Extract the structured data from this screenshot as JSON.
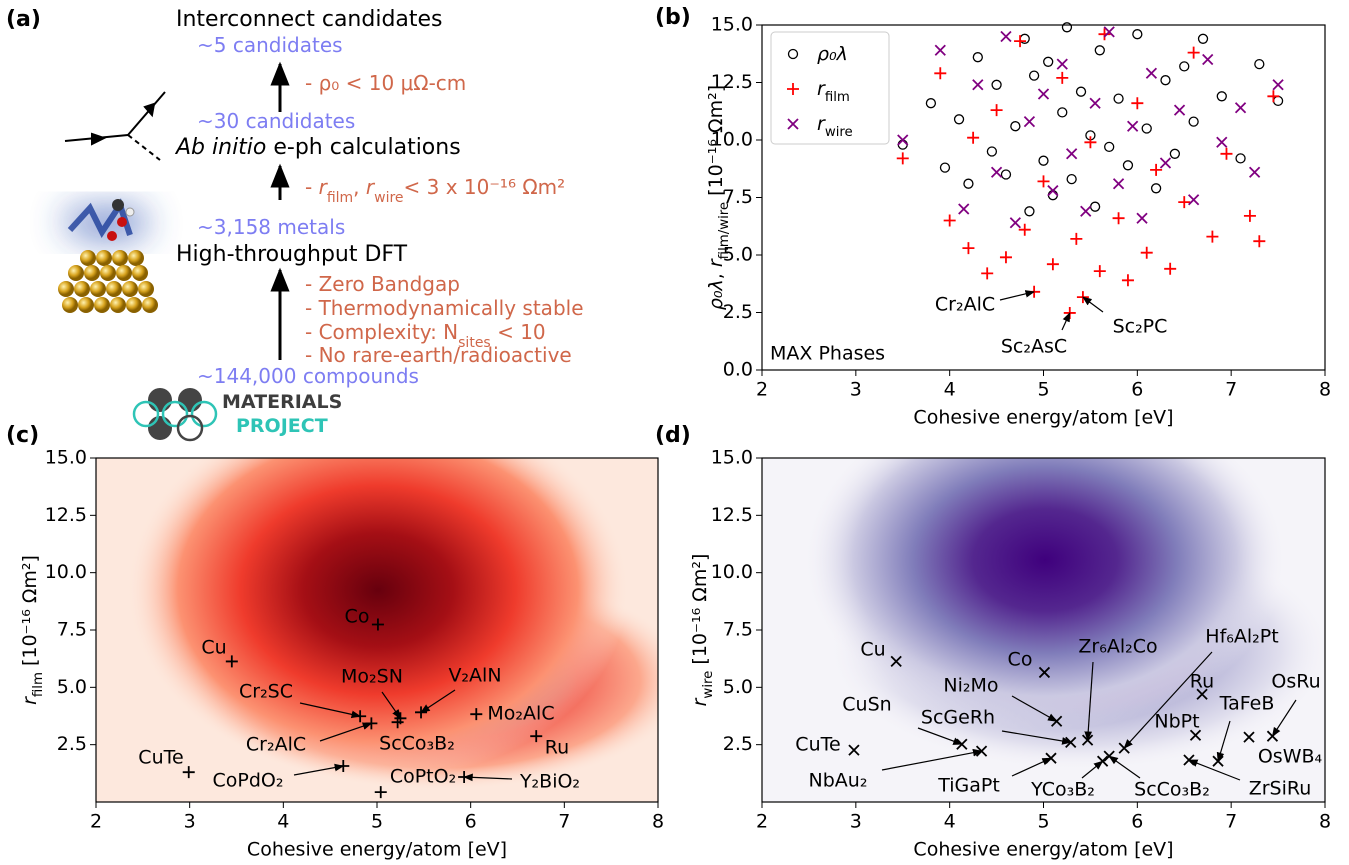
{
  "panel_a": {
    "label": "(a)",
    "top": {
      "title": "Interconnect candidates",
      "count": "~5 candidates"
    },
    "filter1": "- ρ₀ < 10 μΩ-cm",
    "stage2": {
      "count": "~30 candidates",
      "title": [
        "Ab initio",
        " e-ph calculations"
      ]
    },
    "filter2": [
      "- ",
      "r",
      "film",
      ", ",
      "r",
      "wire",
      "< 3 x 10⁻¹⁶ Ωm²"
    ],
    "stage3": {
      "count": "~3,158 metals",
      "title": "High-throughput DFT"
    },
    "filter3": [
      "- Zero Bandgap",
      "- Thermodynamically stable",
      [
        "- Complexity: N",
        "sites",
        " < 10"
      ],
      "- No rare-earth/radioactive"
    ],
    "source": {
      "count": "~144,000 compounds",
      "logo": [
        "MATERIALS",
        "PROJECT"
      ]
    }
  },
  "chart_data": [
    {
      "type": "scatter",
      "panel_label": "(b)",
      "xlabel": "Cohesive energy/atom [eV]",
      "ylabel": [
        "ρ₀λ",
        ", ",
        "r",
        "film/wire",
        " [10⁻¹⁶ Ωm²]"
      ],
      "xlim": [
        2,
        8
      ],
      "ylim": [
        0,
        15
      ],
      "xticks": [
        2,
        3,
        4,
        5,
        6,
        7,
        8
      ],
      "yticks": [
        {
          "value": 0,
          "label": "0.0"
        },
        2.5,
        {
          "value": 5,
          "label": "5.0"
        },
        7.5,
        {
          "value": 10,
          "label": "10.0"
        },
        12.5,
        {
          "value": 15,
          "label": "15.0"
        }
      ],
      "legend": "upper left",
      "corner_text": "MAX Phases",
      "series": [
        {
          "name": [
            "ρ₀λ"
          ],
          "marker": "o",
          "color": "#000000",
          "x": [
            3.5,
            3.8,
            3.95,
            4.1,
            4.2,
            4.3,
            4.45,
            4.5,
            4.6,
            4.7,
            4.8,
            4.85,
            4.9,
            5.0,
            5.05,
            5.1,
            5.2,
            5.25,
            5.3,
            5.4,
            5.5,
            5.55,
            5.6,
            5.7,
            5.8,
            5.9,
            6.0,
            6.1,
            6.2,
            6.3,
            6.4,
            6.5,
            6.6,
            6.7,
            6.9,
            7.1,
            7.3,
            7.5
          ],
          "values": [
            9.8,
            11.6,
            8.8,
            10.9,
            8.1,
            13.6,
            9.5,
            12.4,
            8.5,
            10.6,
            14.4,
            6.9,
            12.8,
            9.1,
            13.4,
            7.6,
            11.2,
            14.9,
            8.3,
            12.1,
            10.2,
            7.1,
            13.9,
            9.7,
            11.8,
            8.9,
            14.6,
            10.5,
            7.9,
            12.6,
            9.4,
            13.2,
            10.8,
            14.4,
            11.9,
            9.2,
            13.3,
            11.7
          ]
        },
        {
          "name": [
            "r",
            "film"
          ],
          "marker": "+",
          "color": "#ff0000",
          "x": [
            3.5,
            3.9,
            4.0,
            4.2,
            4.25,
            4.4,
            4.5,
            4.6,
            4.75,
            4.8,
            4.9,
            5.0,
            5.1,
            5.2,
            5.28,
            5.35,
            5.42,
            5.5,
            5.6,
            5.65,
            5.8,
            5.9,
            6.0,
            6.1,
            6.2,
            6.35,
            6.5,
            6.6,
            6.8,
            6.95,
            7.2,
            7.3,
            7.45
          ],
          "values": [
            9.2,
            12.9,
            6.5,
            5.3,
            10.1,
            4.2,
            11.3,
            4.9,
            14.3,
            6.1,
            3.4,
            8.2,
            4.6,
            12.7,
            2.48,
            5.7,
            3.17,
            9.9,
            4.3,
            14.6,
            6.6,
            3.9,
            11.6,
            5.1,
            8.7,
            4.4,
            7.3,
            13.8,
            5.8,
            9.4,
            6.7,
            5.6,
            11.9
          ]
        },
        {
          "name": [
            "r",
            "wire"
          ],
          "marker": "x",
          "color": "#800080",
          "x": [
            3.5,
            3.9,
            4.15,
            4.3,
            4.5,
            4.6,
            4.7,
            4.85,
            5.0,
            5.1,
            5.2,
            5.3,
            5.45,
            5.55,
            5.7,
            5.8,
            5.95,
            6.05,
            6.15,
            6.3,
            6.45,
            6.6,
            6.75,
            6.9,
            7.1,
            7.25,
            7.5
          ],
          "values": [
            10.0,
            13.9,
            7.0,
            12.4,
            8.6,
            14.5,
            6.4,
            10.8,
            12.0,
            7.8,
            13.3,
            9.4,
            6.9,
            11.6,
            14.7,
            8.1,
            10.6,
            6.6,
            12.9,
            9.0,
            11.3,
            7.4,
            13.5,
            9.9,
            11.4,
            8.6,
            12.4
          ]
        }
      ],
      "annotations": [
        {
          "text": "Cr₂AlC",
          "x": 4.9,
          "y": 3.4
        },
        {
          "text": "Sc₂AsC",
          "x": 5.28,
          "y": 2.48
        },
        {
          "text": "Sc₂PC",
          "x": 5.42,
          "y": 3.17
        }
      ]
    },
    {
      "type": "scatter",
      "panel_label": "(c)",
      "xlabel": "Cohesive energy/atom [eV]",
      "ylabel": [
        "r",
        "film",
        " [10⁻¹⁶ Ωm²]"
      ],
      "xlim": [
        2,
        8
      ],
      "ylim": [
        0,
        15
      ],
      "xticks": [
        2,
        3,
        4,
        5,
        6,
        7,
        8
      ],
      "yticks": [
        2.5,
        {
          "value": 5,
          "label": "5.0"
        },
        7.5,
        {
          "value": 10,
          "label": "10.0"
        },
        12.5,
        {
          "value": 15,
          "label": "15.0"
        }
      ],
      "marker": "+",
      "color": "#000000",
      "density_color": "#67000d",
      "labels": [
        "Co",
        "Cu",
        "Cr₂SC",
        "Cr₂AlC",
        "Mo₂SN",
        "V₂AlN",
        "ScCo₃B₂",
        "Mo₂AlC",
        "Ru",
        "CuTe",
        "CoPdO₂",
        "CoPtO₂",
        "Y₂BiO₂"
      ],
      "x": [
        5.01,
        3.45,
        4.82,
        4.94,
        5.25,
        5.47,
        5.22,
        6.06,
        6.7,
        2.99,
        4.64,
        5.04,
        5.93
      ],
      "values": [
        7.74,
        6.13,
        3.74,
        3.43,
        3.65,
        3.91,
        3.48,
        3.83,
        2.87,
        1.3,
        1.57,
        0.43,
        1.09
      ]
    },
    {
      "type": "scatter",
      "panel_label": "(d)",
      "xlabel": "Cohesive energy/atom [eV]",
      "ylabel": [
        "r",
        "wire",
        " [10⁻¹⁶ Ωm²]"
      ],
      "xlim": [
        2,
        8
      ],
      "ylim": [
        0,
        15
      ],
      "xticks": [
        2,
        3,
        4,
        5,
        6,
        7,
        8
      ],
      "yticks": [
        2.5,
        {
          "value": 5,
          "label": "5.0"
        },
        7.5,
        {
          "value": 10,
          "label": "10.0"
        },
        12.5,
        {
          "value": 15,
          "label": "15.0"
        }
      ],
      "marker": "x",
      "color": "#000000",
      "density_color": "#3f007d",
      "labels": [
        "Co",
        "Cu",
        "Ni₂Mo",
        "Zr₆Al₂Co",
        "Hf₆Al₂Pt",
        "ScGeRh",
        "CuSn",
        "CuTe",
        "NbAu₂",
        "TiGaPt",
        "YCo₃B₂",
        "ScCo₃B₂",
        "Ru",
        "NbPt",
        "TaFeB",
        "OsRu",
        "OsWB₄",
        "ZrSiRu"
      ],
      "x": [
        5.01,
        3.43,
        5.14,
        5.47,
        5.86,
        5.29,
        4.13,
        2.98,
        4.34,
        5.08,
        5.63,
        5.7,
        6.69,
        6.62,
        6.86,
        7.44,
        7.19,
        6.55
      ],
      "values": [
        5.65,
        6.13,
        3.52,
        2.7,
        2.35,
        2.6,
        2.52,
        2.26,
        2.22,
        1.91,
        1.78,
        2.0,
        4.7,
        2.91,
        1.78,
        2.87,
        2.83,
        1.83
      ]
    }
  ]
}
